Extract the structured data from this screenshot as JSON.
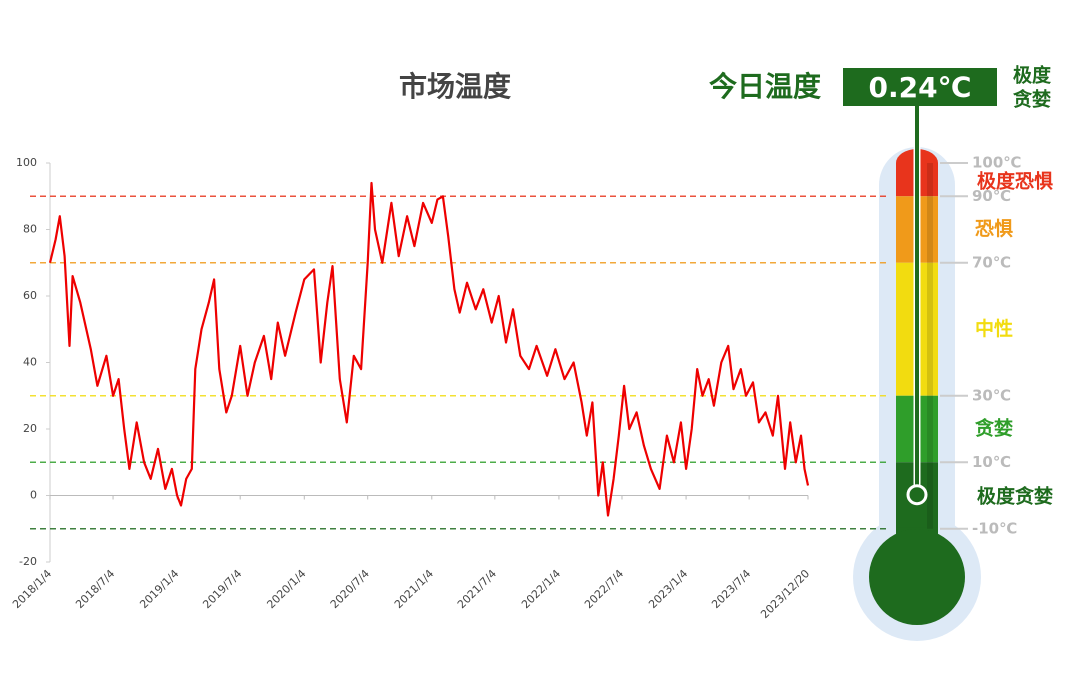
{
  "chart_data": {
    "type": "line",
    "title": "市场温度",
    "x": [
      "2018/1/4",
      "2018/1/20",
      "2018/2/1",
      "2018/2/15",
      "2018/3/1",
      "2018/3/10",
      "2018/4/1",
      "2018/5/1",
      "2018/5/20",
      "2018/6/15",
      "2018/7/4",
      "2018/7/20",
      "2018/8/5",
      "2018/8/20",
      "2018/9/10",
      "2018/10/1",
      "2018/10/20",
      "2018/11/10",
      "2018/12/1",
      "2018/12/20",
      "2019/1/4",
      "2019/1/15",
      "2019/1/30",
      "2019/2/15",
      "2019/2/25",
      "2019/3/15",
      "2019/4/5",
      "2019/4/20",
      "2019/5/5",
      "2019/5/25",
      "2019/6/10",
      "2019/7/4",
      "2019/7/25",
      "2019/8/15",
      "2019/9/10",
      "2019/10/1",
      "2019/10/20",
      "2019/11/10",
      "2019/12/10",
      "2020/1/4",
      "2020/2/1",
      "2020/2/20",
      "2020/3/10",
      "2020/3/25",
      "2020/4/15",
      "2020/5/5",
      "2020/5/25",
      "2020/6/15",
      "2020/7/4",
      "2020/7/15",
      "2020/7/25",
      "2020/8/15",
      "2020/9/10",
      "2020/10/1",
      "2020/10/25",
      "2020/11/15",
      "2020/12/10",
      "2021/1/4",
      "2021/1/20",
      "2021/2/5",
      "2021/2/20",
      "2021/3/10",
      "2021/3/25",
      "2021/4/15",
      "2021/5/10",
      "2021/6/1",
      "2021/6/25",
      "2021/7/15",
      "2021/8/5",
      "2021/8/25",
      "2021/9/15",
      "2021/10/10",
      "2021/11/1",
      "2021/12/1",
      "2021/12/25",
      "2022/1/20",
      "2022/2/15",
      "2022/3/10",
      "2022/3/25",
      "2022/4/10",
      "2022/4/27",
      "2022/5/10",
      "2022/5/25",
      "2022/6/10",
      "2022/6/25",
      "2022/7/10",
      "2022/7/25",
      "2022/8/15",
      "2022/9/5",
      "2022/9/25",
      "2022/10/20",
      "2022/11/10",
      "2022/11/30",
      "2022/12/20",
      "2023/1/4",
      "2023/1/20",
      "2023/2/5",
      "2023/2/20",
      "2023/3/10",
      "2023/3/25",
      "2023/4/15",
      "2023/5/5",
      "2023/5/20",
      "2023/6/10",
      "2023/6/25",
      "2023/7/15",
      "2023/8/1",
      "2023/8/20",
      "2023/9/10",
      "2023/9/25",
      "2023/10/15",
      "2023/10/30",
      "2023/11/15",
      "2023/11/30",
      "2023/12/10",
      "2023/12/20"
    ],
    "values": [
      70,
      77,
      84,
      72,
      45,
      66,
      58,
      44,
      33,
      42,
      30,
      35,
      20,
      8,
      22,
      10,
      5,
      14,
      2,
      8,
      0,
      -3,
      5,
      8,
      38,
      50,
      58,
      65,
      38,
      25,
      30,
      45,
      30,
      40,
      48,
      35,
      52,
      42,
      55,
      65,
      68,
      40,
      58,
      69,
      35,
      22,
      42,
      38,
      70,
      94,
      80,
      70,
      88,
      72,
      84,
      75,
      88,
      82,
      89,
      90,
      78,
      62,
      55,
      64,
      56,
      62,
      52,
      60,
      46,
      56,
      42,
      38,
      45,
      36,
      44,
      35,
      40,
      28,
      18,
      28,
      0,
      10,
      -6,
      5,
      18,
      33,
      20,
      25,
      15,
      8,
      2,
      18,
      10,
      22,
      8,
      20,
      38,
      30,
      35,
      27,
      40,
      45,
      32,
      38,
      30,
      34,
      22,
      25,
      18,
      30,
      8,
      22,
      10,
      18,
      8,
      3
    ],
    "color": "#ee0000",
    "ylim": [
      -20,
      100
    ],
    "yticks": [
      -20,
      0,
      20,
      40,
      60,
      80,
      100
    ],
    "xlim": [
      "2018/1/4",
      "2023/12/20"
    ],
    "xticks": [
      "2018/1/4",
      "2018/7/4",
      "2019/1/4",
      "2019/7/4",
      "2020/1/4",
      "2020/7/4",
      "2021/1/4",
      "2021/7/4",
      "2022/1/4",
      "2022/7/4",
      "2023/1/4",
      "2023/7/4",
      "2023/12/20"
    ]
  },
  "thermometer": {
    "label": "今日温度",
    "today": {
      "value": 0.24,
      "label": "0.24℃"
    },
    "status": [
      "极度",
      "贪婪"
    ],
    "ticks": [
      {
        "value": 100,
        "label": "100℃"
      },
      {
        "value": 90,
        "label": "90℃"
      },
      {
        "value": 70,
        "label": "70℃"
      },
      {
        "value": 30,
        "label": "30℃"
      },
      {
        "value": 10,
        "label": "10℃"
      },
      {
        "value": -10,
        "label": "-10℃"
      }
    ],
    "zones": [
      {
        "name": "极度恐惧",
        "color": "#e8341c"
      },
      {
        "name": "恐惧",
        "color": "#f09a1a"
      },
      {
        "name": "中性",
        "color": "#f2dc10"
      },
      {
        "name": "贪婪",
        "color": "#2f9e2a"
      },
      {
        "name": "极度贪婪",
        "color": "#1e6b1e"
      }
    ]
  }
}
